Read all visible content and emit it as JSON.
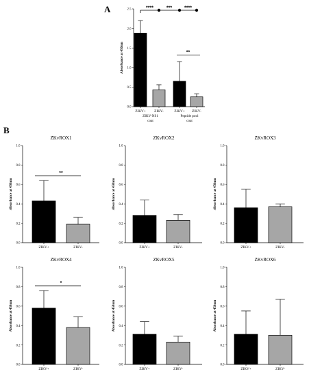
{
  "panels": [
    {
      "letter": "A",
      "title": "",
      "type": "bar",
      "ylabel": "Absorbance at 450nm",
      "ylim": [
        0,
        2.5
      ],
      "yticks": [
        "0.0",
        "0.5",
        "1.0",
        "1.5",
        "2.0",
        "2.5"
      ],
      "categories": [
        "ZIKV+",
        "ZIKV-",
        "ZIKV+",
        "ZIKV-"
      ],
      "group_labels": [
        "ZIKV-NS1\ncoat",
        "Peptide pool\ncoat"
      ],
      "values": [
        1.88,
        0.43,
        0.65,
        0.25
      ],
      "errors": [
        0.32,
        0.13,
        0.5,
        0.08
      ],
      "colors": [
        "#000000",
        "#a6a6a6",
        "#000000",
        "#a6a6a6"
      ],
      "brackets": [
        {
          "from": 0,
          "to": 1,
          "label": "****"
        },
        {
          "from": 1,
          "to": 2,
          "label": "***"
        },
        {
          "from": 2,
          "to": 3,
          "label": "****"
        },
        {
          "from": 2,
          "to": 3,
          "label": "**",
          "low": true
        }
      ]
    },
    {
      "letter": "B",
      "title": "ZKvROX1",
      "type": "bar",
      "ylabel": "Absorbance at 450nm",
      "ylim": [
        0,
        1.0
      ],
      "yticks": [
        "0.0",
        "0.2",
        "0.4",
        "0.6",
        "0.8",
        "1.0"
      ],
      "categories": [
        "ZIKV+",
        "ZIKV-"
      ],
      "values": [
        0.43,
        0.19
      ],
      "errors": [
        0.21,
        0.07
      ],
      "colors": [
        "#000000",
        "#a6a6a6"
      ],
      "sig": {
        "label": "**",
        "y": 0.69
      }
    },
    {
      "letter": "",
      "title": "ZKvROX2",
      "type": "bar",
      "ylabel": "Absorbance at 450nm",
      "ylim": [
        0,
        1.0
      ],
      "yticks": [
        "0.0",
        "0.2",
        "0.4",
        "0.6",
        "0.8",
        "1.0"
      ],
      "categories": [
        "ZIKV+",
        "ZIKV-"
      ],
      "values": [
        0.28,
        0.23
      ],
      "errors": [
        0.16,
        0.06
      ],
      "colors": [
        "#000000",
        "#a6a6a6"
      ]
    },
    {
      "letter": "",
      "title": "ZKvROX3",
      "type": "bar",
      "ylabel": "Absorbance at 450nm",
      "ylim": [
        0,
        1.0
      ],
      "yticks": [
        "0.0",
        "0.2",
        "0.4",
        "0.6",
        "0.8",
        "1.0"
      ],
      "categories": [
        "ZIKV+",
        "ZIKV-"
      ],
      "values": [
        0.36,
        0.37
      ],
      "errors": [
        0.19,
        0.03
      ],
      "colors": [
        "#000000",
        "#a6a6a6"
      ]
    },
    {
      "letter": "",
      "title": "ZKvROX4",
      "type": "bar",
      "ylabel": "Absorbance at 450nm",
      "ylim": [
        0,
        1.0
      ],
      "yticks": [
        "0.0",
        "0.2",
        "0.4",
        "0.6",
        "0.8",
        "1.0"
      ],
      "categories": [
        "ZIKV+",
        "ZIKV-"
      ],
      "values": [
        0.58,
        0.38
      ],
      "errors": [
        0.18,
        0.11
      ],
      "colors": [
        "#000000",
        "#a6a6a6"
      ],
      "sig": {
        "label": "*",
        "y": 0.81
      }
    },
    {
      "letter": "",
      "title": "ZKvROX5",
      "type": "bar",
      "ylabel": "Absorbance at 450nm",
      "ylim": [
        0,
        1.0
      ],
      "yticks": [
        "0.0",
        "0.2",
        "0.4",
        "0.6",
        "0.8",
        "1.0"
      ],
      "categories": [
        "ZIKV+",
        "ZIKV-"
      ],
      "values": [
        0.31,
        0.23
      ],
      "errors": [
        0.13,
        0.06
      ],
      "colors": [
        "#000000",
        "#a6a6a6"
      ]
    },
    {
      "letter": "",
      "title": "ZKvROX6",
      "type": "bar",
      "ylabel": "Absorbance at 450nm",
      "ylim": [
        0,
        1.0
      ],
      "yticks": [
        "0.0",
        "0.2",
        "0.4",
        "0.6",
        "0.8",
        "1.0"
      ],
      "categories": [
        "ZIKV+",
        "ZIKV-"
      ],
      "values": [
        0.31,
        0.3
      ],
      "errors": [
        0.24,
        0.37
      ],
      "colors": [
        "#000000",
        "#a6a6a6"
      ]
    }
  ],
  "chart_data": [
    {
      "type": "bar",
      "title": "",
      "ylabel": "Absorbance at 450nm",
      "ylim": [
        0,
        2.5
      ],
      "categories": [
        "ZIKV+ (ZIKV-NS1 coat)",
        "ZIKV- (ZIKV-NS1 coat)",
        "ZIKV+ (Peptide pool coat)",
        "ZIKV- (Peptide pool coat)"
      ],
      "values": [
        1.88,
        0.43,
        0.65,
        0.25
      ],
      "errors": [
        0.32,
        0.13,
        0.5,
        0.08
      ],
      "annotations": [
        "****",
        "***",
        "****",
        "**"
      ]
    },
    {
      "type": "bar",
      "title": "ZKvROX1",
      "ylabel": "Absorbance at 450nm",
      "ylim": [
        0,
        1.0
      ],
      "categories": [
        "ZIKV+",
        "ZIKV-"
      ],
      "values": [
        0.43,
        0.19
      ],
      "errors": [
        0.21,
        0.07
      ],
      "annotations": [
        "**"
      ]
    },
    {
      "type": "bar",
      "title": "ZKvROX2",
      "ylabel": "Absorbance at 450nm",
      "ylim": [
        0,
        1.0
      ],
      "categories": [
        "ZIKV+",
        "ZIKV-"
      ],
      "values": [
        0.28,
        0.23
      ],
      "errors": [
        0.16,
        0.06
      ]
    },
    {
      "type": "bar",
      "title": "ZKvROX3",
      "ylabel": "Absorbance at 450nm",
      "ylim": [
        0,
        1.0
      ],
      "categories": [
        "ZIKV+",
        "ZIKV-"
      ],
      "values": [
        0.36,
        0.37
      ],
      "errors": [
        0.19,
        0.03
      ]
    },
    {
      "type": "bar",
      "title": "ZKvROX4",
      "ylabel": "Absorbance at 450nm",
      "ylim": [
        0,
        1.0
      ],
      "categories": [
        "ZIKV+",
        "ZIKV-"
      ],
      "values": [
        0.58,
        0.38
      ],
      "errors": [
        0.18,
        0.11
      ],
      "annotations": [
        "*"
      ]
    },
    {
      "type": "bar",
      "title": "ZKvROX5",
      "ylabel": "Absorbance at 450nm",
      "ylim": [
        0,
        1.0
      ],
      "categories": [
        "ZIKV+",
        "ZIKV-"
      ],
      "values": [
        0.31,
        0.23
      ],
      "errors": [
        0.13,
        0.06
      ]
    },
    {
      "type": "bar",
      "title": "ZKvROX6",
      "ylabel": "Absorbance at 450nm",
      "ylim": [
        0,
        1.0
      ],
      "categories": [
        "ZIKV+",
        "ZIKV-"
      ],
      "values": [
        0.31,
        0.3
      ],
      "errors": [
        0.24,
        0.37
      ]
    }
  ]
}
